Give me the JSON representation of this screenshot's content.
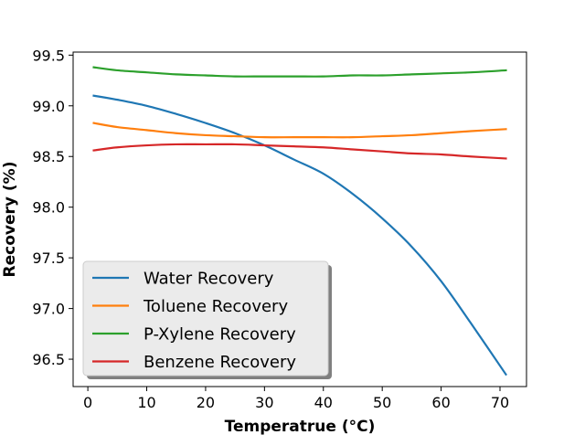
{
  "chart_data": {
    "type": "line",
    "xlabel": "Temperatrue (°C)",
    "ylabel": "Recovery (%)",
    "xlim": [
      -2.5,
      74.5
    ],
    "ylim": [
      96.23,
      99.53
    ],
    "xticks": [
      0,
      10,
      20,
      30,
      40,
      50,
      60,
      70
    ],
    "yticks": [
      96.5,
      97.0,
      97.5,
      98.0,
      98.5,
      99.0,
      99.5
    ],
    "ytick_labels": [
      "96.5",
      "97.0",
      "97.5",
      "98.0",
      "98.5",
      "99.0",
      "99.5"
    ],
    "grid": false,
    "legend_position": "lower-left",
    "x": [
      1,
      5,
      10,
      15,
      20,
      25,
      30,
      35,
      40,
      45,
      50,
      55,
      60,
      65,
      71
    ],
    "series": [
      {
        "name": "Water Recovery",
        "color": "#1f77b4",
        "values": [
          99.1,
          99.06,
          99.0,
          98.92,
          98.83,
          98.73,
          98.61,
          98.47,
          98.33,
          98.13,
          97.89,
          97.61,
          97.27,
          96.86,
          96.35
        ]
      },
      {
        "name": "Toluene Recovery",
        "color": "#ff7f0e",
        "values": [
          98.83,
          98.79,
          98.76,
          98.73,
          98.71,
          98.7,
          98.69,
          98.69,
          98.69,
          98.69,
          98.7,
          98.71,
          98.73,
          98.75,
          98.77
        ]
      },
      {
        "name": "P-Xylene Recovery",
        "color": "#2ca02c",
        "values": [
          99.38,
          99.35,
          99.33,
          99.31,
          99.3,
          99.29,
          99.29,
          99.29,
          99.29,
          99.3,
          99.3,
          99.31,
          99.32,
          99.33,
          99.35
        ]
      },
      {
        "name": "Benzene Recovery",
        "color": "#d62728",
        "values": [
          98.56,
          98.59,
          98.61,
          98.62,
          98.62,
          98.62,
          98.61,
          98.6,
          98.59,
          98.57,
          98.55,
          98.53,
          98.52,
          98.5,
          98.48
        ]
      }
    ]
  }
}
